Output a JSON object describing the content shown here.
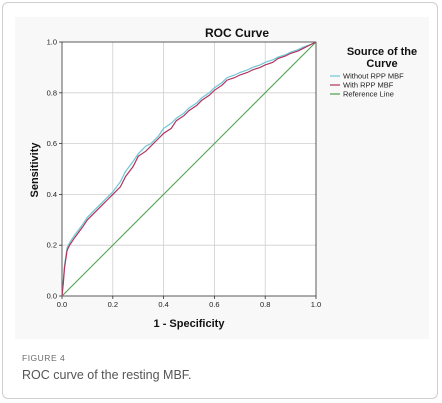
{
  "figure": {
    "label": "FIGURE 4",
    "caption": "ROC curve of the resting MBF."
  },
  "colors": {
    "without_rpp": "#6fc6d8",
    "with_rpp": "#b1345c",
    "reference": "#4aa04a",
    "grid": "#cfcfcf",
    "panel_bg": "#f8f8f8"
  },
  "chart_data": {
    "type": "line",
    "title": "ROC Curve",
    "xlabel": "1 - Specificity",
    "ylabel": "Sensitivity",
    "xlim": [
      0,
      1
    ],
    "ylim": [
      0,
      1
    ],
    "xticks": [
      "0.0",
      "0.2",
      "0.4",
      "0.6",
      "0.8",
      "1.0"
    ],
    "yticks": [
      "0.0",
      "0.2",
      "0.4",
      "0.6",
      "0.8",
      "1.0"
    ],
    "grid": true,
    "legend": {
      "title": "Source of the Curve",
      "position": "right",
      "entries": [
        "Without RPP MBF",
        "With RPP MBF",
        "Reference Line"
      ]
    },
    "series": [
      {
        "name": "Without RPP MBF",
        "x": [
          0,
          0.005,
          0.01,
          0.02,
          0.03,
          0.05,
          0.08,
          0.1,
          0.13,
          0.15,
          0.18,
          0.2,
          0.23,
          0.25,
          0.28,
          0.3,
          0.33,
          0.35,
          0.38,
          0.4,
          0.43,
          0.45,
          0.48,
          0.5,
          0.53,
          0.55,
          0.58,
          0.6,
          0.63,
          0.65,
          0.68,
          0.7,
          0.73,
          0.75,
          0.78,
          0.8,
          0.83,
          0.85,
          0.88,
          0.9,
          0.93,
          0.95,
          0.98,
          1.0
        ],
        "y": [
          0,
          0.06,
          0.12,
          0.19,
          0.21,
          0.24,
          0.28,
          0.31,
          0.34,
          0.36,
          0.39,
          0.41,
          0.45,
          0.49,
          0.53,
          0.56,
          0.59,
          0.6,
          0.63,
          0.66,
          0.68,
          0.7,
          0.72,
          0.74,
          0.76,
          0.78,
          0.8,
          0.82,
          0.84,
          0.86,
          0.87,
          0.88,
          0.89,
          0.9,
          0.91,
          0.92,
          0.93,
          0.94,
          0.95,
          0.96,
          0.97,
          0.98,
          0.99,
          1.0
        ]
      },
      {
        "name": "With RPP MBF",
        "x": [
          0,
          0.005,
          0.01,
          0.02,
          0.03,
          0.05,
          0.08,
          0.1,
          0.13,
          0.15,
          0.18,
          0.2,
          0.23,
          0.25,
          0.28,
          0.3,
          0.33,
          0.35,
          0.38,
          0.4,
          0.43,
          0.45,
          0.48,
          0.5,
          0.53,
          0.55,
          0.58,
          0.6,
          0.63,
          0.65,
          0.68,
          0.7,
          0.73,
          0.75,
          0.78,
          0.8,
          0.83,
          0.85,
          0.88,
          0.9,
          0.93,
          0.95,
          0.98,
          1.0
        ],
        "y": [
          0,
          0.05,
          0.11,
          0.18,
          0.2,
          0.23,
          0.27,
          0.3,
          0.33,
          0.35,
          0.38,
          0.4,
          0.43,
          0.47,
          0.51,
          0.55,
          0.57,
          0.59,
          0.62,
          0.64,
          0.66,
          0.69,
          0.71,
          0.73,
          0.75,
          0.77,
          0.79,
          0.81,
          0.83,
          0.85,
          0.86,
          0.87,
          0.88,
          0.89,
          0.9,
          0.91,
          0.92,
          0.935,
          0.945,
          0.955,
          0.965,
          0.975,
          0.99,
          1.0
        ]
      },
      {
        "name": "Reference Line",
        "x": [
          0,
          1
        ],
        "y": [
          0,
          1
        ]
      }
    ]
  }
}
